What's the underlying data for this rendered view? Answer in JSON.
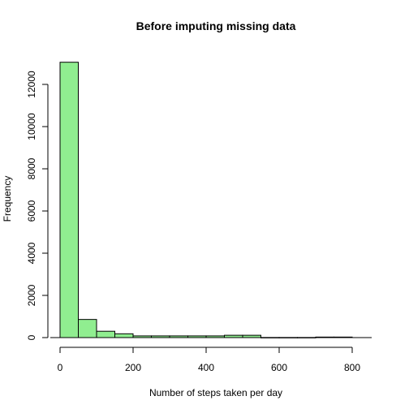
{
  "chart_data": {
    "type": "bar",
    "title": "Before imputing missing data",
    "xlabel": "Number of steps taken per day",
    "ylabel": "Frequency",
    "bin_width": 50,
    "bins": [
      {
        "start": 0,
        "end": 50,
        "count": 13050
      },
      {
        "start": 50,
        "end": 100,
        "count": 860
      },
      {
        "start": 100,
        "end": 150,
        "count": 300
      },
      {
        "start": 150,
        "end": 200,
        "count": 180
      },
      {
        "start": 200,
        "end": 250,
        "count": 80
      },
      {
        "start": 250,
        "end": 300,
        "count": 80
      },
      {
        "start": 300,
        "end": 350,
        "count": 80
      },
      {
        "start": 350,
        "end": 400,
        "count": 80
      },
      {
        "start": 400,
        "end": 450,
        "count": 80
      },
      {
        "start": 450,
        "end": 500,
        "count": 110
      },
      {
        "start": 500,
        "end": 550,
        "count": 110
      },
      {
        "start": 550,
        "end": 600,
        "count": 5
      },
      {
        "start": 600,
        "end": 650,
        "count": 5
      },
      {
        "start": 650,
        "end": 700,
        "count": 5
      },
      {
        "start": 700,
        "end": 750,
        "count": 25
      },
      {
        "start": 750,
        "end": 800,
        "count": 25
      }
    ],
    "xlim": [
      0,
      850
    ],
    "ylim": [
      0,
      13500
    ],
    "x_ticks": [
      0,
      200,
      400,
      600,
      800
    ],
    "y_ticks": [
      0,
      2000,
      4000,
      6000,
      8000,
      10000,
      12000
    ],
    "bar_color": "#90EE90",
    "grid": false
  }
}
